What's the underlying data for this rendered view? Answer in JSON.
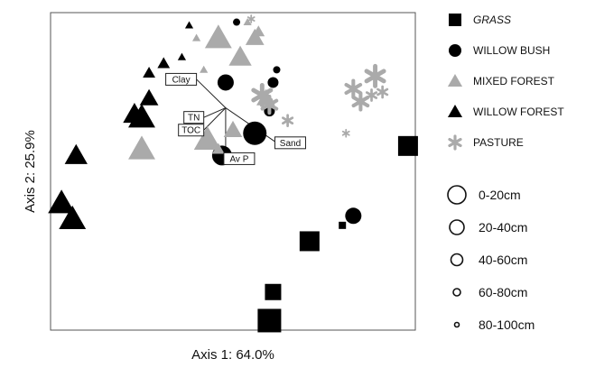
{
  "chart_data": {
    "type": "scatter",
    "title": "",
    "xlabel": "Axis 1: 64.0%",
    "ylabel": "Axis 2: 25.9%",
    "xlim": [
      0,
      100
    ],
    "ylim": [
      0,
      100
    ],
    "grid": false,
    "legend_position": "right",
    "colors": {
      "dark": "#000000",
      "light": "#aaaaaa",
      "frame": "#555555"
    },
    "legend": [
      {
        "name": "GRASS",
        "marker": "square",
        "color": "#000000",
        "italic": true
      },
      {
        "name": "WILLOW BUSH",
        "marker": "circle",
        "color": "#000000"
      },
      {
        "name": "MIXED FOREST",
        "marker": "triangle",
        "color": "#aaaaaa"
      },
      {
        "name": "WILLOW FOREST",
        "marker": "triangle",
        "color": "#000000"
      },
      {
        "name": "PASTURE",
        "marker": "star",
        "color": "#aaaaaa"
      }
    ],
    "depth_legend": [
      {
        "label": "0-20cm",
        "level": 1
      },
      {
        "label": "20-40cm",
        "level": 2
      },
      {
        "label": "40-60cm",
        "level": 3
      },
      {
        "label": "60-80cm",
        "level": 4
      },
      {
        "label": "80-100cm",
        "level": 5
      }
    ],
    "series": [
      {
        "name": "GRASS",
        "points": [
          {
            "x": 98,
            "y": 58,
            "depth": 2
          },
          {
            "x": 80,
            "y": 33,
            "depth": 5
          },
          {
            "x": 71,
            "y": 28,
            "depth": 2
          },
          {
            "x": 61,
            "y": 12,
            "depth": 3
          },
          {
            "x": 60,
            "y": 3,
            "depth": 1
          }
        ]
      },
      {
        "name": "WILLOW BUSH",
        "points": [
          {
            "x": 48,
            "y": 78,
            "depth": 3
          },
          {
            "x": 61,
            "y": 78,
            "depth": 4
          },
          {
            "x": 62,
            "y": 82,
            "depth": 5
          },
          {
            "x": 60,
            "y": 69,
            "depth": 4
          },
          {
            "x": 56,
            "y": 62,
            "depth": 1
          },
          {
            "x": 47,
            "y": 55,
            "depth": 2
          },
          {
            "x": 83,
            "y": 36,
            "depth": 3
          },
          {
            "x": 51,
            "y": 97,
            "depth": 5
          }
        ]
      },
      {
        "name": "MIXED FOREST",
        "points": [
          {
            "x": 46,
            "y": 92,
            "depth": 1
          },
          {
            "x": 52,
            "y": 86,
            "depth": 2
          },
          {
            "x": 56,
            "y": 92,
            "depth": 3
          },
          {
            "x": 57,
            "y": 94,
            "depth": 4
          },
          {
            "x": 40,
            "y": 92,
            "depth": 5
          },
          {
            "x": 54,
            "y": 97,
            "depth": 5
          },
          {
            "x": 42,
            "y": 82,
            "depth": 5
          },
          {
            "x": 38,
            "y": 64,
            "depth": 3
          },
          {
            "x": 43,
            "y": 60,
            "depth": 1
          },
          {
            "x": 50,
            "y": 63,
            "depth": 3
          },
          {
            "x": 46,
            "y": 57,
            "depth": 4
          },
          {
            "x": 25,
            "y": 57,
            "depth": 1
          },
          {
            "x": 59,
            "y": 73,
            "depth": 3
          }
        ]
      },
      {
        "name": "WILLOW FOREST",
        "points": [
          {
            "x": 31,
            "y": 84,
            "depth": 4
          },
          {
            "x": 36,
            "y": 86,
            "depth": 5
          },
          {
            "x": 27,
            "y": 81,
            "depth": 4
          },
          {
            "x": 27,
            "y": 73,
            "depth": 3
          },
          {
            "x": 23,
            "y": 68,
            "depth": 2
          },
          {
            "x": 25,
            "y": 67,
            "depth": 1
          },
          {
            "x": 7,
            "y": 55,
            "depth": 2
          },
          {
            "x": 3,
            "y": 40,
            "depth": 1
          },
          {
            "x": 6,
            "y": 35,
            "depth": 1
          },
          {
            "x": 38,
            "y": 96,
            "depth": 5
          }
        ]
      },
      {
        "name": "PASTURE",
        "points": [
          {
            "x": 89,
            "y": 80,
            "depth": 2
          },
          {
            "x": 83,
            "y": 76,
            "depth": 3
          },
          {
            "x": 85,
            "y": 72,
            "depth": 3
          },
          {
            "x": 88,
            "y": 74,
            "depth": 4
          },
          {
            "x": 91,
            "y": 75,
            "depth": 4
          },
          {
            "x": 65,
            "y": 66,
            "depth": 4
          },
          {
            "x": 60,
            "y": 71,
            "depth": 3
          },
          {
            "x": 58,
            "y": 74,
            "depth": 2
          },
          {
            "x": 81,
            "y": 62,
            "depth": 5
          },
          {
            "x": 55,
            "y": 98,
            "depth": 5
          }
        ]
      }
    ],
    "vectors": {
      "origin": {
        "x": 48,
        "y": 70
      },
      "arrows": [
        {
          "label": "Clay",
          "x": 40,
          "y": 79
        },
        {
          "label": "TN",
          "x": 42,
          "y": 67
        },
        {
          "label": "TOC",
          "x": 42,
          "y": 63
        },
        {
          "label": "Sand",
          "x": 62,
          "y": 59
        },
        {
          "label": "Av P",
          "x": 48,
          "y": 54
        }
      ]
    }
  }
}
